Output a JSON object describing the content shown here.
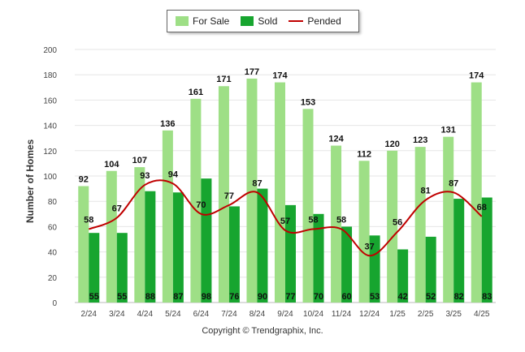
{
  "legend": {
    "for_sale": "For Sale",
    "sold": "Sold",
    "pended": "Pended"
  },
  "credit": "Copyright © Trendgraphix, Inc.",
  "colors": {
    "for_sale": "#9edf86",
    "sold": "#17a52f",
    "pended": "#c00000",
    "grid": "#e6e6e6"
  },
  "chart_data": {
    "type": "bar",
    "categories": [
      "2/24",
      "3/24",
      "4/24",
      "5/24",
      "6/24",
      "7/24",
      "8/24",
      "9/24",
      "10/24",
      "11/24",
      "12/24",
      "1/25",
      "2/25",
      "3/25",
      "4/25"
    ],
    "series": [
      {
        "name": "For Sale",
        "type": "bar",
        "values": [
          92,
          104,
          107,
          136,
          161,
          171,
          177,
          174,
          153,
          124,
          112,
          120,
          123,
          131,
          174
        ]
      },
      {
        "name": "Sold",
        "type": "bar",
        "values": [
          55,
          55,
          88,
          87,
          98,
          76,
          90,
          77,
          70,
          60,
          53,
          42,
          52,
          82,
          83
        ]
      },
      {
        "name": "Pended",
        "type": "line",
        "values": [
          58,
          67,
          93,
          94,
          70,
          77,
          87,
          57,
          58,
          58,
          37,
          56,
          81,
          87,
          68
        ]
      }
    ],
    "ylabel": "Number of Homes",
    "xlabel": "",
    "ylim": [
      0,
      200
    ],
    "yticks": [
      0,
      20,
      40,
      60,
      80,
      100,
      120,
      140,
      160,
      180,
      200
    ],
    "grid": true,
    "legend_position": "top-center"
  }
}
